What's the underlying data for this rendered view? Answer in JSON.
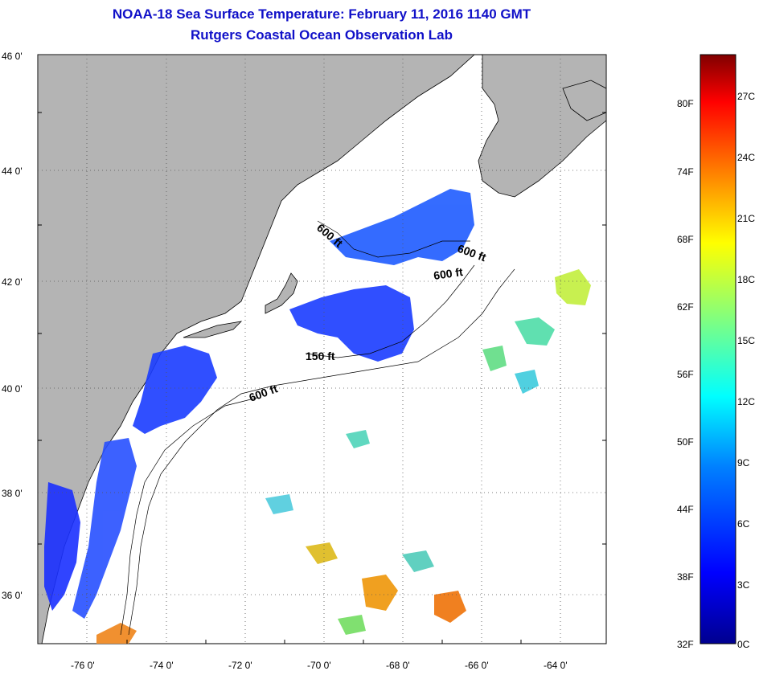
{
  "header": {
    "title": "NOAA-18 Sea Surface Temperature:  February 11, 2016 1140 GMT",
    "subtitle": "Rutgers Coastal Ocean Observation Lab"
  },
  "map": {
    "lat_ticks": [
      "46 0'",
      "44 0'",
      "42 0'",
      "40 0'",
      "38 0'",
      "36 0'"
    ],
    "lon_ticks": [
      "-76 0'",
      "-74 0'",
      "-72 0'",
      "-70 0'",
      "-68 0'",
      "-66 0'",
      "-64 0'"
    ],
    "contour_labels": [
      "600 ft",
      "600 ft",
      "600 ft",
      "150 ft",
      "600 ft"
    ],
    "colors": {
      "land": "#b4b4b4",
      "ocean": "#ffffff",
      "coast": "#000000"
    }
  },
  "colorbar": {
    "f_labels": [
      "80F",
      "74F",
      "68F",
      "62F",
      "56F",
      "50F",
      "44F",
      "38F",
      "32F"
    ],
    "c_labels": [
      "27C",
      "24C",
      "21C",
      "18C",
      "15C",
      "12C",
      "9C",
      "6C",
      "3C",
      "0C"
    ],
    "gradient": [
      "#00008f",
      "#0000ff",
      "#0080ff",
      "#00ffff",
      "#80ff80",
      "#ffff00",
      "#ff8000",
      "#ff0000",
      "#800000"
    ]
  }
}
